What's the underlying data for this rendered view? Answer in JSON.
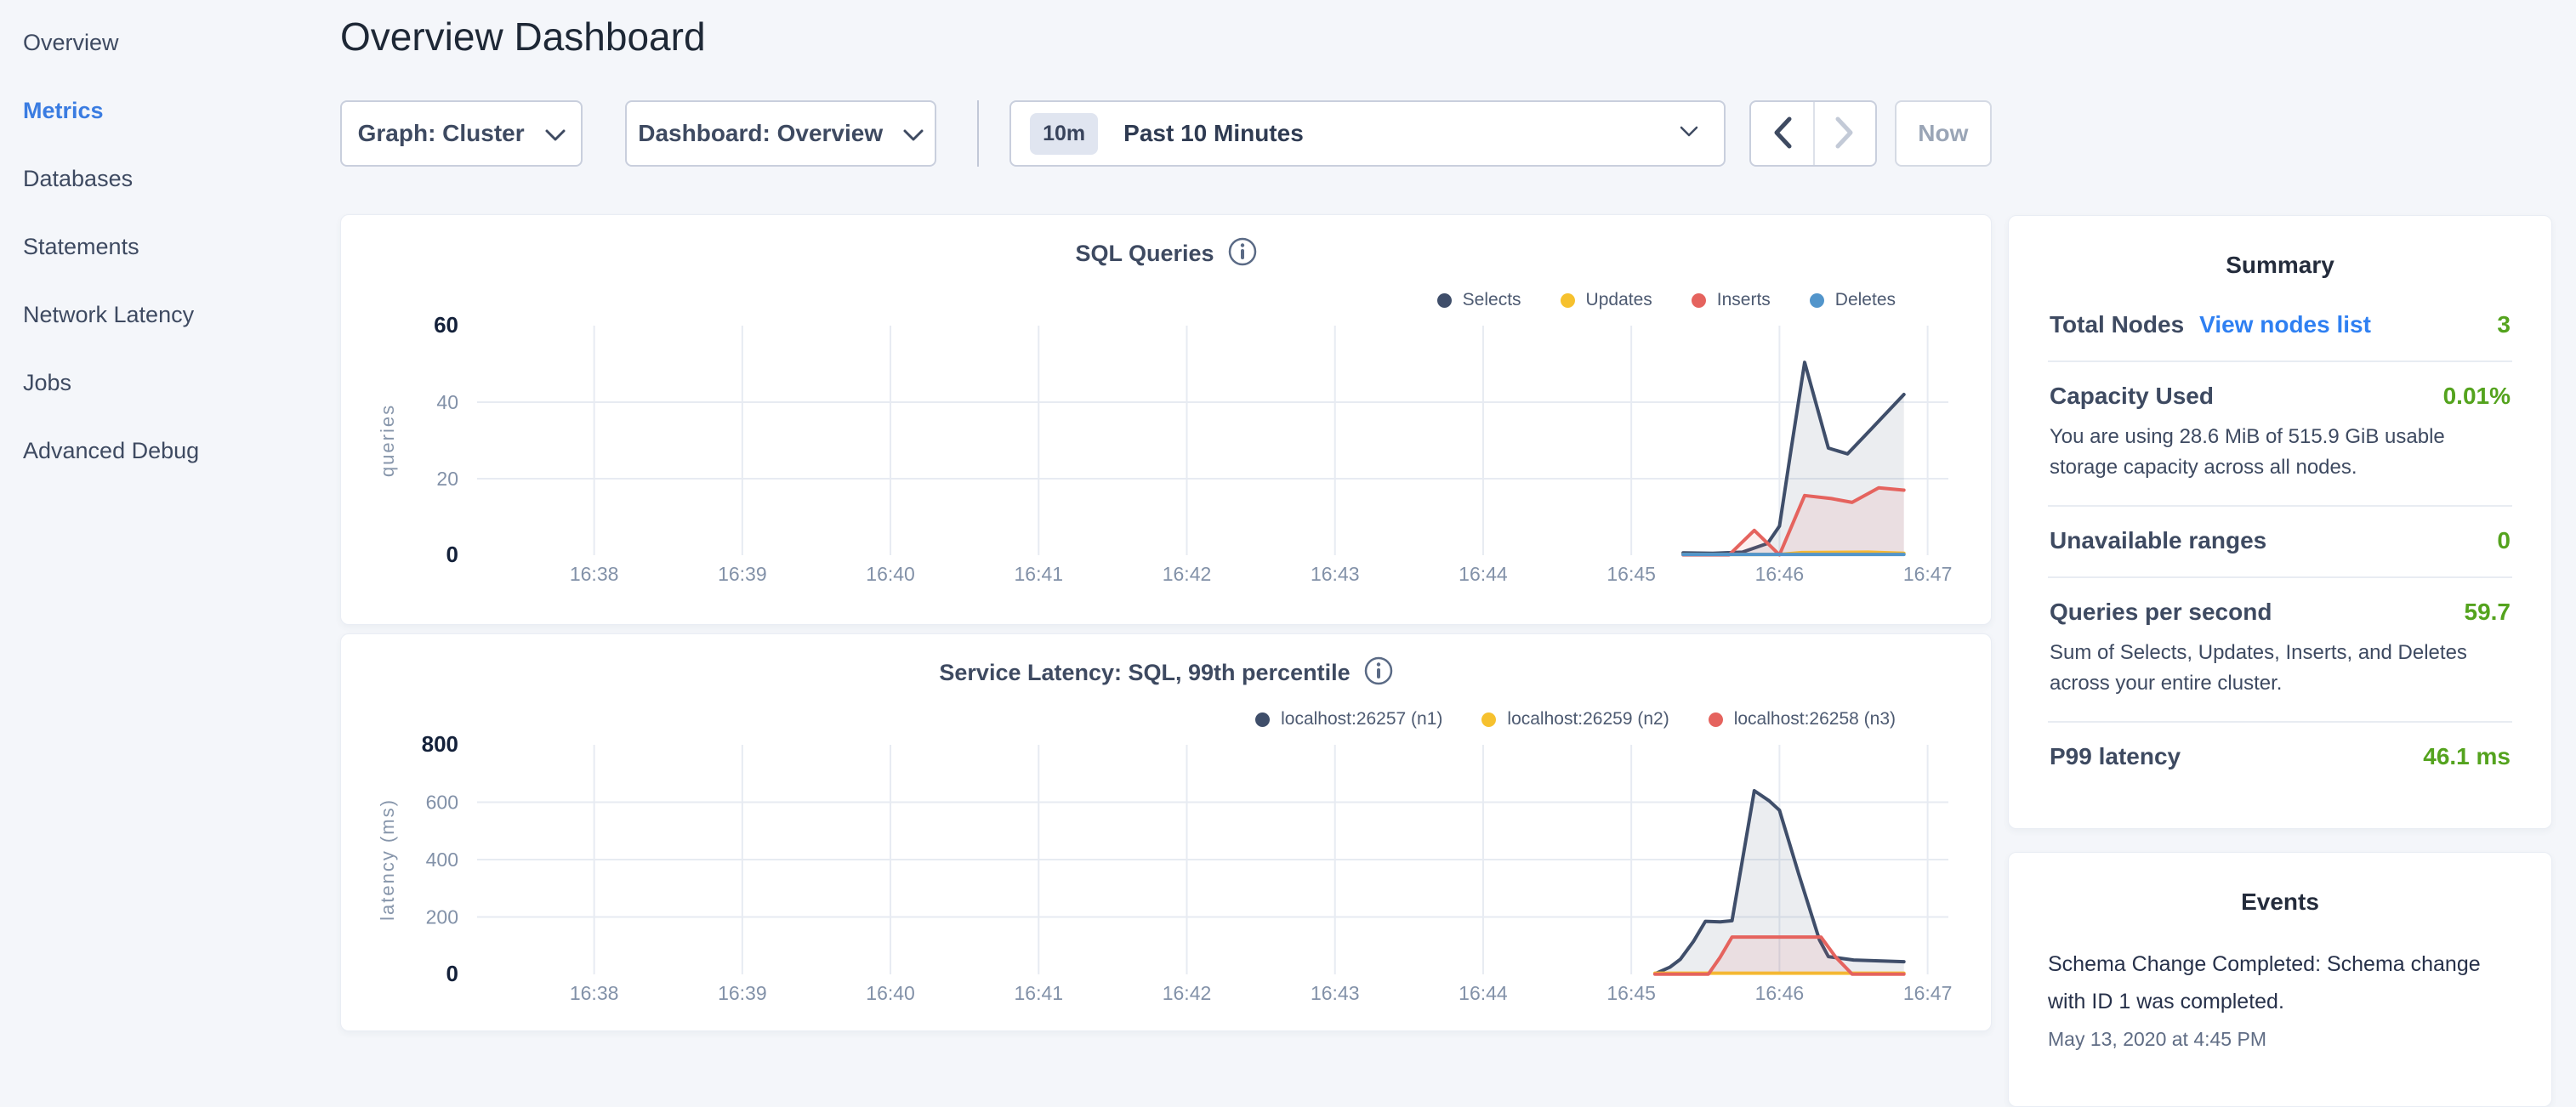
{
  "sidebar": {
    "items": [
      {
        "label": "Overview",
        "active": false
      },
      {
        "label": "Metrics",
        "active": true
      },
      {
        "label": "Databases",
        "active": false
      },
      {
        "label": "Statements",
        "active": false
      },
      {
        "label": "Network Latency",
        "active": false
      },
      {
        "label": "Jobs",
        "active": false
      },
      {
        "label": "Advanced Debug",
        "active": false
      }
    ]
  },
  "header": {
    "title": "Overview Dashboard"
  },
  "controls": {
    "graph_dropdown": {
      "label": "Graph: Cluster"
    },
    "dashboard_dropdown": {
      "label": "Dashboard: Overview"
    },
    "time_picker": {
      "badge": "10m",
      "label": "Past 10 Minutes"
    },
    "now_label": "Now"
  },
  "colors": {
    "accent_blue": "#3a7ce1",
    "link_blue": "#2f80f2",
    "value_green": "#54a31e",
    "page_bg": "#f4f6fa",
    "grid": "#e7ebf2",
    "tick_gray": "#8291a8",
    "tick_strong": "#14213a"
  },
  "summary": {
    "title": "Summary",
    "rows": [
      {
        "label": "Total Nodes",
        "link": "View nodes list",
        "value": "3"
      },
      {
        "label": "Capacity Used",
        "value": "0.01%",
        "description": "You are using 28.6 MiB of 515.9 GiB usable storage capacity across all nodes."
      },
      {
        "label": "Unavailable ranges",
        "value": "0"
      },
      {
        "label": "Queries per second",
        "value": "59.7",
        "description": "Sum of Selects, Updates, Inserts, and Deletes across your entire cluster."
      },
      {
        "label": "P99 latency",
        "value": "46.1 ms"
      }
    ]
  },
  "events": {
    "title": "Events",
    "items": [
      {
        "message": "Schema Change Completed: Schema change with ID 1 was completed.",
        "timestamp": "May 13, 2020 at 4:45 PM"
      }
    ]
  },
  "chart_data": [
    {
      "type": "area",
      "title": "SQL Queries",
      "ylabel": "queries",
      "grid": true,
      "legend_position": "top-right",
      "xlim": [
        37.21,
        47.14
      ],
      "ylim": [
        0,
        60
      ],
      "x_ticks": [
        {
          "v": 38,
          "label": "16:38"
        },
        {
          "v": 39,
          "label": "16:39"
        },
        {
          "v": 40,
          "label": "16:40"
        },
        {
          "v": 41,
          "label": "16:41"
        },
        {
          "v": 42,
          "label": "16:42"
        },
        {
          "v": 43,
          "label": "16:43"
        },
        {
          "v": 44,
          "label": "16:44"
        },
        {
          "v": 45,
          "label": "16:45"
        },
        {
          "v": 46,
          "label": "16:46"
        },
        {
          "v": 47,
          "label": "16:47"
        }
      ],
      "y_ticks": [
        {
          "v": 0,
          "label": "0",
          "strong": true
        },
        {
          "v": 20,
          "label": "20",
          "strong": false
        },
        {
          "v": 40,
          "label": "40",
          "strong": false
        },
        {
          "v": 60,
          "label": "60",
          "strong": true
        }
      ],
      "series": [
        {
          "name": "Selects",
          "color": "#3f4e6a",
          "fill": "rgba(63,78,106,0.10)",
          "points": [
            [
              45.35,
              0.6
            ],
            [
              45.55,
              0.5
            ],
            [
              45.75,
              0.8
            ],
            [
              45.92,
              3.1
            ],
            [
              46.0,
              7.6
            ],
            [
              46.08,
              28
            ],
            [
              46.17,
              50.4
            ],
            [
              46.33,
              28
            ],
            [
              46.46,
              26.5
            ],
            [
              46.62,
              33
            ],
            [
              46.84,
              42
            ]
          ]
        },
        {
          "name": "Updates",
          "color": "#f6c12e",
          "fill": null,
          "points": [
            [
              45.35,
              0.2
            ],
            [
              46.0,
              0.2
            ],
            [
              46.15,
              0.7
            ],
            [
              46.6,
              0.8
            ],
            [
              46.84,
              0.5
            ]
          ]
        },
        {
          "name": "Inserts",
          "color": "#e5635e",
          "fill": "rgba(229,99,94,0.10)",
          "points": [
            [
              45.35,
              0.1
            ],
            [
              45.66,
              0.1
            ],
            [
              45.83,
              6.5
            ],
            [
              46.0,
              0.1
            ],
            [
              46.17,
              15.6
            ],
            [
              46.35,
              14.8
            ],
            [
              46.49,
              13.8
            ],
            [
              46.67,
              17.6
            ],
            [
              46.84,
              17.0
            ]
          ]
        },
        {
          "name": "Deletes",
          "color": "#5295cb",
          "fill": null,
          "points": [
            [
              45.35,
              0.2
            ],
            [
              46.84,
              0.2
            ]
          ]
        }
      ]
    },
    {
      "type": "area",
      "title": "Service Latency: SQL, 99th percentile",
      "ylabel": "latency (ms)",
      "grid": true,
      "legend_position": "top-right",
      "xlim": [
        37.21,
        47.14
      ],
      "ylim": [
        0,
        800
      ],
      "x_ticks": [
        {
          "v": 38,
          "label": "16:38"
        },
        {
          "v": 39,
          "label": "16:39"
        },
        {
          "v": 40,
          "label": "16:40"
        },
        {
          "v": 41,
          "label": "16:41"
        },
        {
          "v": 42,
          "label": "16:42"
        },
        {
          "v": 43,
          "label": "16:43"
        },
        {
          "v": 44,
          "label": "16:44"
        },
        {
          "v": 45,
          "label": "16:45"
        },
        {
          "v": 46,
          "label": "16:46"
        },
        {
          "v": 47,
          "label": "16:47"
        }
      ],
      "y_ticks": [
        {
          "v": 0,
          "label": "0",
          "strong": true
        },
        {
          "v": 200,
          "label": "200",
          "strong": false
        },
        {
          "v": 400,
          "label": "400",
          "strong": false
        },
        {
          "v": 600,
          "label": "600",
          "strong": false
        },
        {
          "v": 800,
          "label": "800",
          "strong": true
        }
      ],
      "series": [
        {
          "name": "localhost:26257 (n1)",
          "color": "#3f4e6a",
          "fill": "rgba(63,78,106,0.10)",
          "points": [
            [
              45.16,
              2
            ],
            [
              45.26,
              25
            ],
            [
              45.33,
              52
            ],
            [
              45.42,
              115
            ],
            [
              45.5,
              185
            ],
            [
              45.6,
              183
            ],
            [
              45.68,
              187
            ],
            [
              45.83,
              640
            ],
            [
              45.93,
              605
            ],
            [
              46.0,
              572
            ],
            [
              46.13,
              350
            ],
            [
              46.27,
              120
            ],
            [
              46.33,
              62
            ],
            [
              46.5,
              50
            ],
            [
              46.84,
              44
            ]
          ]
        },
        {
          "name": "localhost:26259 (n2)",
          "color": "#f6c12e",
          "fill": null,
          "points": [
            [
              45.16,
              4
            ],
            [
              46.84,
              4
            ]
          ]
        },
        {
          "name": "localhost:26258 (n3)",
          "color": "#e5635e",
          "fill": "rgba(229,99,94,0.10)",
          "points": [
            [
              45.16,
              1
            ],
            [
              45.52,
              1
            ],
            [
              45.6,
              60
            ],
            [
              45.68,
              130
            ],
            [
              46.28,
              130
            ],
            [
              46.38,
              60
            ],
            [
              46.49,
              1
            ],
            [
              46.84,
              1
            ]
          ]
        }
      ]
    }
  ]
}
